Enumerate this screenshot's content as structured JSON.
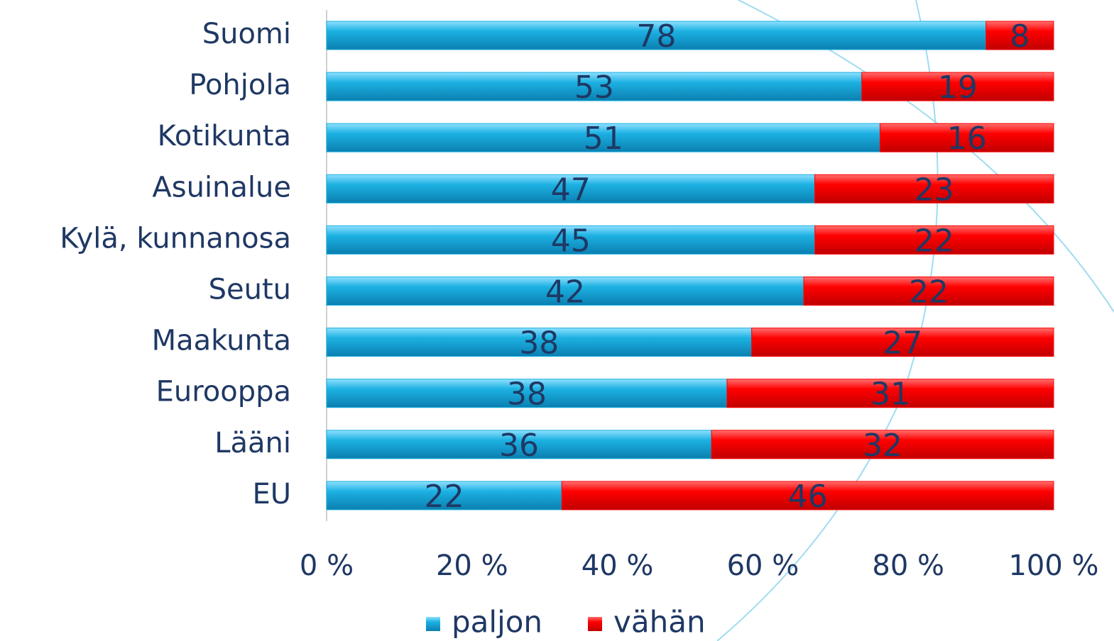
{
  "chart_data": {
    "type": "bar",
    "orientation": "horizontal",
    "stacked": "percent",
    "categories": [
      "Suomi",
      "Pohjola",
      "Kotikunta",
      "Asuinalue",
      "Kylä, kunnanosa",
      "Seutu",
      "Maakunta",
      "Eurooppa",
      "Lääni",
      "EU"
    ],
    "series": [
      {
        "name": "paljon",
        "color": "#1cb1e2",
        "values": [
          78,
          53,
          51,
          47,
          45,
          42,
          38,
          38,
          36,
          22
        ]
      },
      {
        "name": "vähän",
        "color": "#ff0000",
        "values": [
          8,
          19,
          16,
          23,
          22,
          22,
          27,
          31,
          32,
          46
        ]
      }
    ],
    "xlim": [
      0,
      100
    ],
    "xticks": [
      {
        "value": 0,
        "label": "0 %"
      },
      {
        "value": 20,
        "label": "20 %"
      },
      {
        "value": 40,
        "label": "40 %"
      },
      {
        "value": 60,
        "label": "60 %"
      },
      {
        "value": 80,
        "label": "80 %"
      },
      {
        "value": 100,
        "label": "100 %"
      }
    ],
    "legend": "bottom"
  }
}
